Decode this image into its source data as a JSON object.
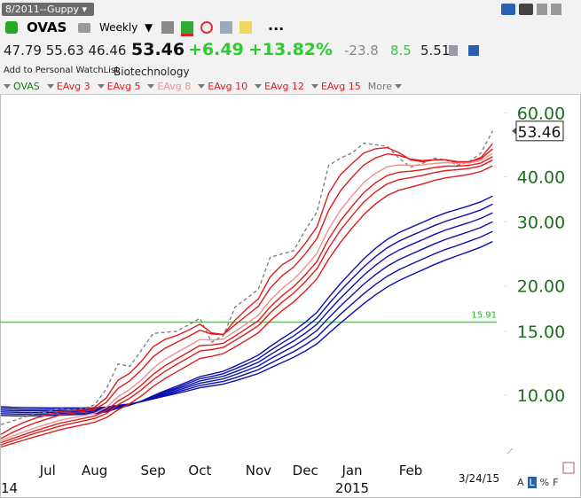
{
  "toolbar": {
    "layout": "8/2011--Guppy",
    "symbol": "OVAS",
    "period": "Weekly",
    "more": "..."
  },
  "quote": {
    "open": "47.79",
    "high": "55.63",
    "low": "46.46",
    "last": "53.46",
    "change": "+6.49",
    "change_pct": "+13.82%",
    "stat1": "-23.8",
    "stat2": "8.5",
    "stat3": "5.51",
    "watchlist": "Add to Personal WatchList",
    "industry": "Biotechnology"
  },
  "chart_data": {
    "type": "line",
    "log_scale": true,
    "grid": false,
    "ylim": [
      6.6,
      68
    ],
    "yticks": [
      {
        "value": 60,
        "label": "60.00"
      },
      {
        "value": 40,
        "label": "40.00"
      },
      {
        "value": 30,
        "label": "30.00"
      },
      {
        "value": 20,
        "label": "20.00"
      },
      {
        "value": 15,
        "label": "15.00"
      },
      {
        "value": 10,
        "label": "10.00"
      }
    ],
    "tick_color": "#1b6e1b",
    "categories": [
      null,
      null,
      null,
      null,
      "Jul",
      null,
      null,
      null,
      "Aug",
      null,
      null,
      null,
      null,
      "Sep",
      null,
      null,
      null,
      "Oct",
      null,
      null,
      null,
      null,
      "Nov",
      null,
      null,
      null,
      "Dec",
      null,
      null,
      null,
      "Jan",
      null,
      null,
      null,
      null,
      "Feb",
      null,
      null,
      null,
      null,
      null,
      null,
      null
    ],
    "years": [
      "14",
      null,
      null,
      null,
      null,
      null,
      null,
      null,
      null,
      null,
      null,
      null,
      null,
      null,
      null,
      null,
      null,
      null,
      null,
      null,
      null,
      null,
      null,
      null,
      null,
      null,
      null,
      null,
      null,
      null,
      "2015",
      null,
      null,
      null,
      null,
      null,
      null,
      null,
      null,
      null,
      null,
      null,
      null
    ],
    "last_date": "3/24/15",
    "hline": {
      "value": 15.91,
      "color": "#33dd33"
    },
    "legend_more": "More",
    "series": [
      {
        "name": "OVAS",
        "color": "#808080",
        "legend_color": "#1b7a1b",
        "dashed": true,
        "values": [
          8.3,
          8.5,
          8.7,
          8.9,
          9.0,
          9.2,
          9.1,
          9.2,
          9.4,
          10.4,
          12.2,
          12.0,
          13.3,
          14.8,
          14.9,
          15.0,
          15.6,
          16.3,
          14.0,
          14.6,
          17.5,
          18.5,
          19.6,
          24.0,
          24.5,
          25.0,
          28.5,
          32.0,
          43.0,
          45.0,
          46.5,
          49.5,
          49.0,
          48.5,
          45.0,
          42.5,
          43.5,
          45.0,
          44.5,
          43.0,
          44.0,
          46.5,
          53.46
        ]
      },
      {
        "name": "EAvg 3",
        "color": "#e01b1b",
        "values": [
          7.8,
          8.15,
          8.43,
          8.66,
          8.83,
          9.02,
          9.06,
          9.13,
          9.27,
          9.83,
          11.0,
          11.5,
          12.4,
          13.6,
          14.25,
          14.6,
          15.1,
          15.7,
          14.85,
          14.7,
          16.1,
          17.3,
          18.45,
          21.2,
          22.85,
          23.9,
          26.2,
          29.1,
          36.05,
          40.5,
          43.5,
          46.5,
          47.75,
          48.1,
          46.55,
          44.5,
          44.0,
          44.5,
          44.5,
          43.75,
          43.9,
          45.2,
          49.3
        ]
      },
      {
        "name": "EAvg 5",
        "color": "#e01b1b",
        "values": [
          7.6,
          7.9,
          8.17,
          8.41,
          8.61,
          8.81,
          8.91,
          9.01,
          9.14,
          9.56,
          10.44,
          10.96,
          11.74,
          12.76,
          13.47,
          13.98,
          14.52,
          15.11,
          14.74,
          14.69,
          15.63,
          16.59,
          17.59,
          19.73,
          21.32,
          22.55,
          24.53,
          27.02,
          32.35,
          36.57,
          39.88,
          43.09,
          45.06,
          46.21,
          45.81,
          44.71,
          44.31,
          44.54,
          44.53,
          44.02,
          44.01,
          44.84,
          47.71
        ]
      },
      {
        "name": "EAvg 8",
        "color": "#f09090",
        "values": [
          7.5,
          7.72,
          7.94,
          8.15,
          8.34,
          8.53,
          8.66,
          8.78,
          8.92,
          9.25,
          9.91,
          10.37,
          11.02,
          11.86,
          12.56,
          13.1,
          13.66,
          14.25,
          14.19,
          14.28,
          14.99,
          15.77,
          16.62,
          18.26,
          19.65,
          20.84,
          22.54,
          24.64,
          28.72,
          32.34,
          35.47,
          38.58,
          40.9,
          42.59,
          43.13,
          42.99,
          43.1,
          43.52,
          43.74,
          43.58,
          43.67,
          44.3,
          46.34
        ]
      },
      {
        "name": "EAvg 10",
        "color": "#e01b1b",
        "values": [
          7.4,
          7.6,
          7.8,
          8.0,
          8.18,
          8.37,
          8.5,
          8.63,
          8.77,
          9.07,
          9.64,
          10.07,
          10.66,
          11.41,
          12.05,
          12.59,
          13.14,
          13.71,
          13.76,
          13.91,
          14.56,
          15.28,
          16.07,
          17.51,
          18.78,
          19.91,
          21.47,
          23.39,
          26.96,
          30.24,
          33.2,
          36.16,
          38.5,
          40.32,
          41.17,
          41.41,
          41.79,
          42.37,
          42.76,
          42.8,
          43.02,
          43.65,
          45.43
        ]
      },
      {
        "name": "EAvg 12",
        "color": "#e01b1b",
        "values": [
          7.3,
          7.49,
          7.68,
          7.87,
          8.04,
          8.22,
          8.36,
          8.49,
          8.63,
          8.9,
          9.41,
          9.81,
          10.35,
          11.03,
          11.63,
          12.15,
          12.68,
          13.24,
          13.36,
          13.55,
          14.16,
          14.83,
          15.56,
          16.86,
          18.03,
          19.1,
          20.55,
          22.31,
          25.49,
          28.49,
          31.26,
          34.07,
          36.36,
          38.23,
          39.27,
          39.77,
          40.35,
          41.06,
          41.59,
          41.81,
          42.15,
          42.82,
          44.46
        ]
      },
      {
        "name": "EAvg 15",
        "color": "#e01b1b",
        "values": [
          7.2,
          7.36,
          7.53,
          7.7,
          7.86,
          8.03,
          8.16,
          8.29,
          8.43,
          8.68,
          9.12,
          9.48,
          9.96,
          10.57,
          11.11,
          11.6,
          12.1,
          12.63,
          12.8,
          13.03,
          13.59,
          14.2,
          14.88,
          16.02,
          17.08,
          18.07,
          19.37,
          20.95,
          23.71,
          26.37,
          28.89,
          31.47,
          33.66,
          35.52,
          36.7,
          37.43,
          38.19,
          39.04,
          39.72,
          40.13,
          40.61,
          41.35,
          42.86
        ]
      },
      {
        "color": "#0a10b0",
        "values": [
          8.8,
          8.78,
          8.77,
          8.78,
          8.79,
          8.82,
          8.84,
          8.86,
          8.9,
          9.0,
          9.21,
          9.39,
          9.64,
          9.97,
          10.29,
          10.59,
          10.91,
          11.26,
          11.44,
          11.65,
          12.03,
          12.45,
          12.91,
          13.63,
          14.33,
          15.02,
          15.89,
          16.93,
          18.61,
          20.31,
          22.0,
          23.77,
          25.4,
          26.89,
          28.06,
          28.99,
          29.93,
          30.93,
          31.81,
          32.53,
          33.27,
          34.12,
          35.37
        ]
      },
      {
        "color": "#0a10b0",
        "values": [
          8.9,
          8.88,
          8.87,
          8.87,
          8.88,
          8.9,
          8.92,
          8.93,
          8.97,
          9.06,
          9.24,
          9.41,
          9.63,
          9.93,
          10.22,
          10.49,
          10.79,
          11.11,
          11.27,
          11.47,
          11.82,
          12.2,
          12.62,
          13.28,
          13.92,
          14.56,
          15.36,
          16.32,
          17.85,
          19.41,
          20.96,
          22.59,
          24.1,
          25.49,
          26.59,
          27.48,
          28.37,
          29.32,
          30.17,
          30.87,
          31.59,
          32.42,
          33.6
        ]
      },
      {
        "color": "#0a10b0",
        "values": [
          9.0,
          8.98,
          8.96,
          8.96,
          8.97,
          8.98,
          9.0,
          9.01,
          9.04,
          9.11,
          9.28,
          9.42,
          9.62,
          9.89,
          10.15,
          10.4,
          10.66,
          10.95,
          11.11,
          11.29,
          11.6,
          11.95,
          12.34,
          12.93,
          13.52,
          14.1,
          14.83,
          15.7,
          17.09,
          18.51,
          19.93,
          21.42,
          22.8,
          24.09,
          25.12,
          25.96,
          26.81,
          27.71,
          28.53,
          29.21,
          29.92,
          30.71,
          31.83
        ]
      },
      {
        "color": "#0a10b0",
        "values": [
          9.1,
          9.07,
          9.06,
          9.06,
          9.05,
          9.07,
          9.07,
          9.08,
          9.1,
          9.17,
          9.31,
          9.44,
          9.62,
          9.85,
          10.08,
          10.3,
          10.54,
          10.8,
          10.94,
          11.1,
          11.39,
          11.71,
          12.05,
          12.59,
          13.11,
          13.64,
          14.3,
          15.09,
          16.34,
          17.61,
          18.89,
          20.24,
          21.51,
          22.68,
          23.64,
          24.45,
          25.26,
          26.11,
          26.88,
          27.56,
          28.24,
          29.01,
          30.05
        ]
      },
      {
        "color": "#0a10b0",
        "values": [
          9.2,
          9.17,
          9.15,
          9.15,
          9.14,
          9.15,
          9.15,
          9.16,
          9.17,
          9.22,
          9.35,
          9.45,
          9.61,
          9.81,
          10.01,
          10.21,
          10.41,
          10.64,
          10.78,
          10.92,
          11.17,
          11.46,
          11.77,
          12.24,
          12.71,
          13.18,
          13.77,
          14.47,
          15.58,
          16.71,
          17.86,
          19.06,
          20.21,
          21.28,
          22.17,
          22.93,
          23.71,
          24.5,
          25.23,
          25.87,
          26.57,
          27.3,
          28.28
        ]
      },
      {
        "color": "#0a10b0",
        "values": [
          9.3,
          9.27,
          9.25,
          9.24,
          9.23,
          9.23,
          9.23,
          9.23,
          9.24,
          9.28,
          9.38,
          9.47,
          9.6,
          9.77,
          9.94,
          10.11,
          10.29,
          10.49,
          10.61,
          10.74,
          10.96,
          11.21,
          11.48,
          11.89,
          12.3,
          12.72,
          13.24,
          13.86,
          14.82,
          15.81,
          16.82,
          17.89,
          18.91,
          19.88,
          20.7,
          21.42,
          22.14,
          22.89,
          23.6,
          24.24,
          24.89,
          25.6,
          26.51
        ]
      }
    ]
  },
  "footer": {
    "modes": [
      "A",
      "L",
      "%",
      "F"
    ]
  }
}
